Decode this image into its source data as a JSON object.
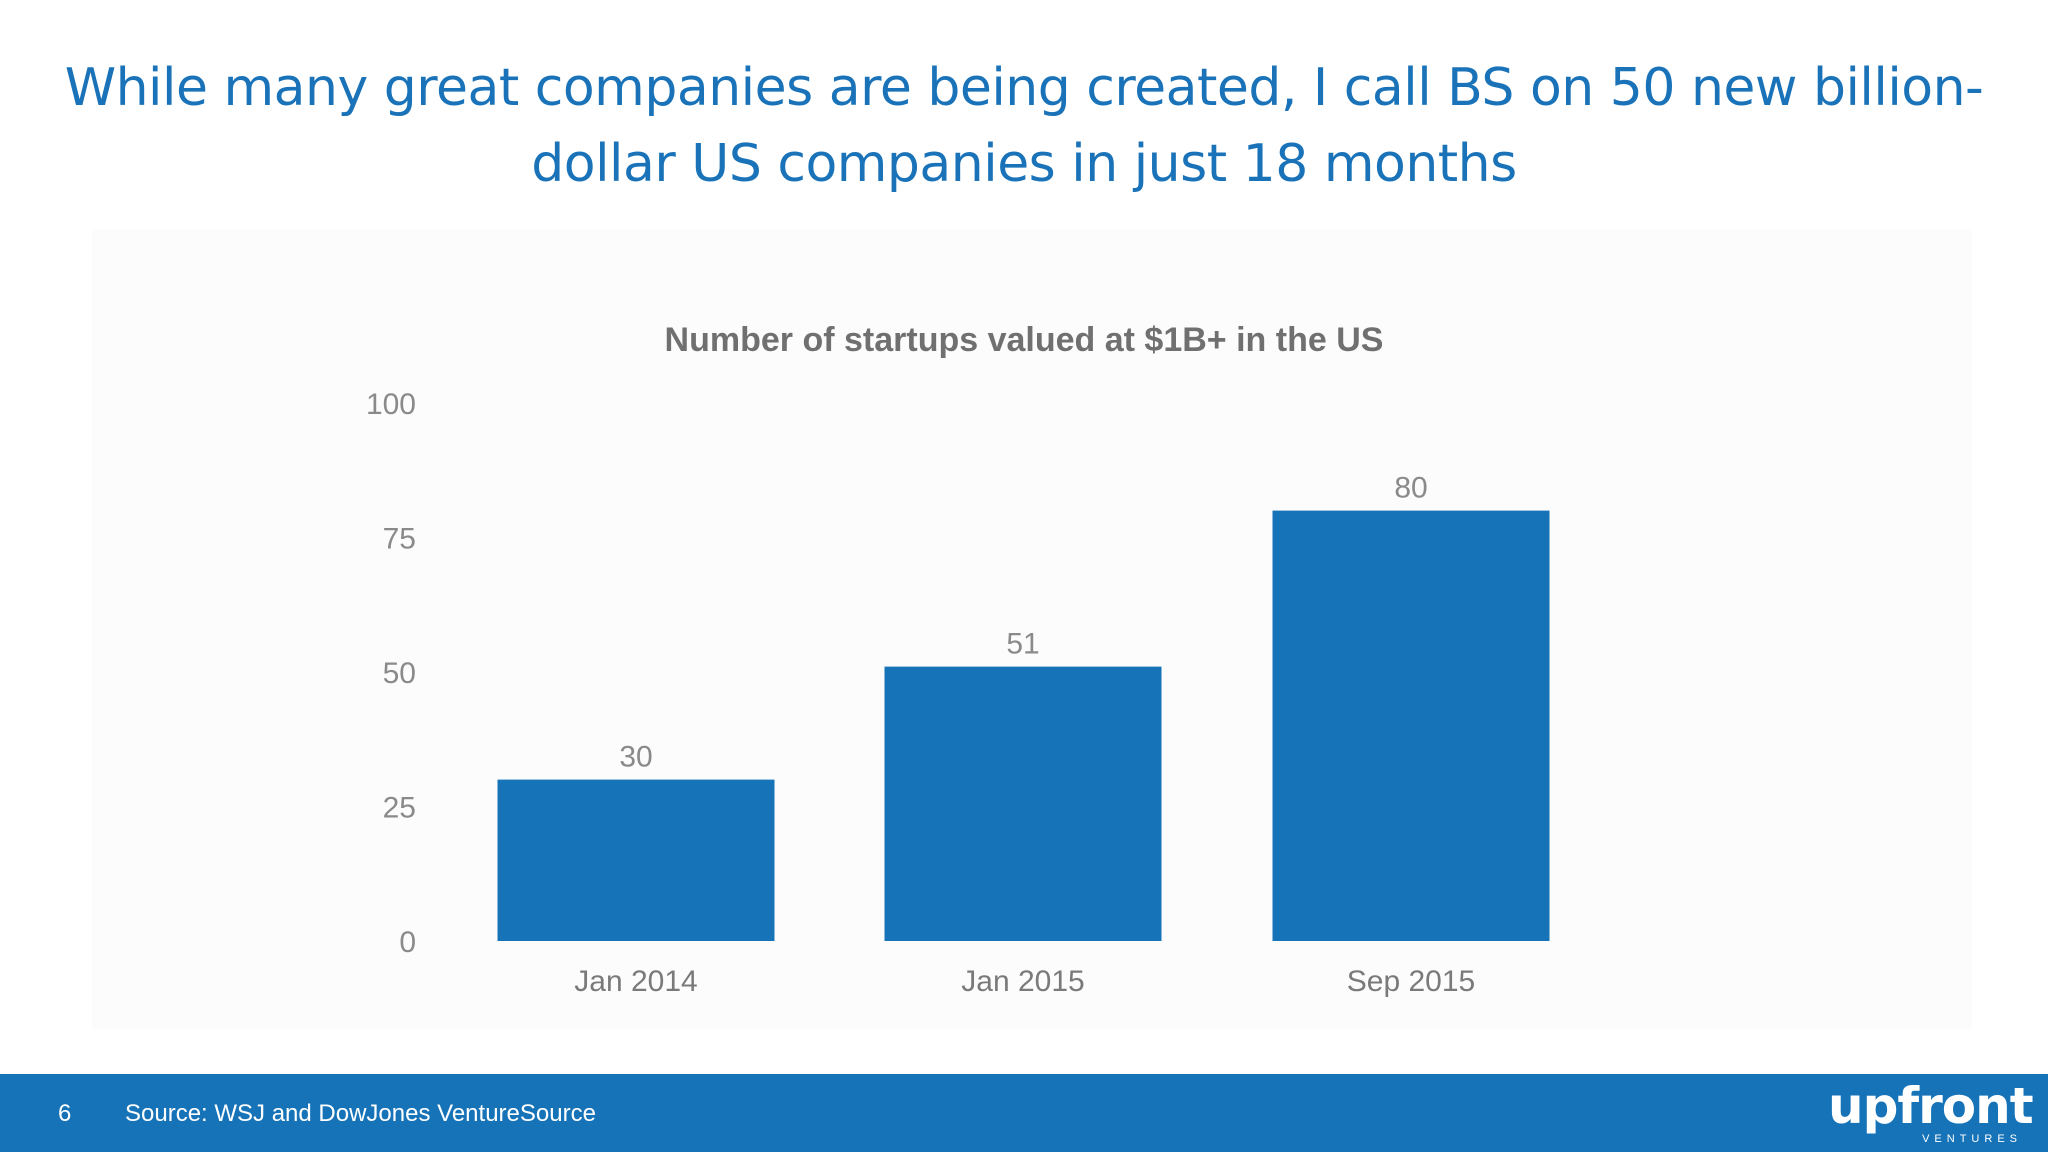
{
  "slide": {
    "title": "While many great companies are being created, I call BS on 50 new billion-dollar US companies in just 18 months"
  },
  "chart_data": {
    "type": "bar",
    "title": "Number of startups valued at $1B+ in the US",
    "xlabel": "",
    "ylabel": "",
    "categories": [
      "Jan 2014",
      "Jan 2015",
      "Sep 2015"
    ],
    "values": [
      30,
      51,
      80
    ],
    "data_labels": [
      "30",
      "51",
      "80"
    ],
    "ylim": [
      0,
      100
    ],
    "yticks": [
      0,
      25,
      50,
      75,
      100
    ],
    "ytick_labels": [
      "0",
      "25",
      "50",
      "75",
      "100"
    ],
    "grid": false,
    "legend": "none",
    "bar_color": "#1673b8"
  },
  "footer": {
    "page_number": "6",
    "source": "Source: WSJ and DowJones VentureSource",
    "logo_word": "upfront",
    "logo_sub": "VENTURES",
    "background_color": "#1673b8"
  }
}
